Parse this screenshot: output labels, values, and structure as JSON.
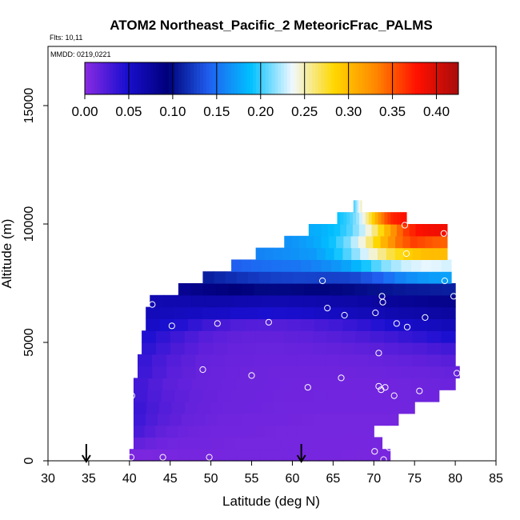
{
  "chart_data": {
    "type": "heatmap",
    "title": "ATOM2 Northeast_Pacific_2 MeteoricFrac_PALMS",
    "annotations": [
      "Flts: 10,11",
      "MMDD: 0219,0221"
    ],
    "xlabel": "Latitude (deg N)",
    "ylabel": "Altitude (m)",
    "xlim": [
      30,
      85
    ],
    "ylim": [
      0,
      17500
    ],
    "x_ticks": [
      30,
      35,
      40,
      45,
      50,
      55,
      60,
      65,
      70,
      75,
      80,
      85
    ],
    "y_ticks": [
      0,
      5000,
      10000,
      15000
    ],
    "colorbar": {
      "ticks": [
        0.0,
        0.05,
        0.1,
        0.15,
        0.2,
        0.25,
        0.3,
        0.35,
        0.4
      ],
      "tick_labels": [
        "0.00",
        "0.05",
        "0.10",
        "0.15",
        "0.20",
        "0.25",
        "0.30",
        "0.35",
        "0.40"
      ],
      "range": [
        0,
        0.425
      ],
      "colors": [
        "#8a2be2",
        "#1a0fd0",
        "#00007a",
        "#2060f0",
        "#00c0ff",
        "#f0f8ff",
        "#ffd800",
        "#ff8800",
        "#ff1000",
        "#a80c0c"
      ]
    },
    "grid_rows": [
      {
        "alt_range": [
          0,
          500
        ],
        "lat_range": [
          40.0,
          72.0
        ],
        "values": [
          0.006,
          0.007,
          0.008,
          0.008,
          0.009,
          0.009,
          0.009,
          0.008,
          0.008,
          0.007,
          0.007
        ]
      },
      {
        "alt_range": [
          500,
          1000
        ],
        "lat_range": [
          40.5,
          71.0
        ],
        "values": [
          0.018,
          0.012,
          0.01,
          0.01,
          0.009,
          0.009,
          0.009,
          0.009,
          0.008,
          0.008,
          0.008
        ]
      },
      {
        "alt_range": [
          1000,
          1500
        ],
        "lat_range": [
          40.5,
          70.0
        ],
        "values": [
          0.03,
          0.018,
          0.013,
          0.011,
          0.01,
          0.01,
          0.009,
          0.009,
          0.009,
          0.009,
          0.009
        ]
      },
      {
        "alt_range": [
          1500,
          2000
        ],
        "lat_range": [
          40.5,
          73.0
        ],
        "values": [
          0.035,
          0.022,
          0.015,
          0.012,
          0.011,
          0.01,
          0.01,
          0.009,
          0.009,
          0.009,
          0.009
        ]
      },
      {
        "alt_range": [
          2000,
          2500
        ],
        "lat_range": [
          40.5,
          75.0
        ],
        "values": [
          0.036,
          0.024,
          0.016,
          0.013,
          0.012,
          0.011,
          0.01,
          0.01,
          0.01,
          0.01,
          0.01
        ]
      },
      {
        "alt_range": [
          2500,
          3000
        ],
        "lat_range": [
          40.5,
          78.0
        ],
        "values": [
          0.034,
          0.022,
          0.016,
          0.013,
          0.012,
          0.011,
          0.011,
          0.01,
          0.01,
          0.011,
          0.012
        ]
      },
      {
        "alt_range": [
          3000,
          3500
        ],
        "lat_range": [
          40.5,
          80.0
        ],
        "values": [
          0.033,
          0.02,
          0.015,
          0.013,
          0.012,
          0.011,
          0.011,
          0.011,
          0.011,
          0.012,
          0.013
        ]
      },
      {
        "alt_range": [
          3500,
          4000
        ],
        "lat_range": [
          41.0,
          80.5
        ],
        "values": [
          0.036,
          0.021,
          0.015,
          0.013,
          0.012,
          0.012,
          0.012,
          0.012,
          0.013,
          0.014,
          0.016
        ]
      },
      {
        "alt_range": [
          4000,
          4500
        ],
        "lat_range": [
          41.0,
          80.0
        ],
        "values": [
          0.038,
          0.024,
          0.016,
          0.014,
          0.013,
          0.013,
          0.013,
          0.014,
          0.016,
          0.018,
          0.022
        ]
      },
      {
        "alt_range": [
          4500,
          5000
        ],
        "lat_range": [
          41.5,
          80.0
        ],
        "values": [
          0.042,
          0.028,
          0.018,
          0.015,
          0.014,
          0.015,
          0.016,
          0.018,
          0.022,
          0.026,
          0.032
        ]
      },
      {
        "alt_range": [
          5000,
          5500
        ],
        "lat_range": [
          41.5,
          80.0
        ],
        "values": [
          0.048,
          0.034,
          0.022,
          0.017,
          0.016,
          0.018,
          0.021,
          0.026,
          0.032,
          0.04,
          0.048
        ]
      },
      {
        "alt_range": [
          5500,
          6000
        ],
        "lat_range": [
          42.0,
          80.0
        ],
        "values": [
          0.055,
          0.045,
          0.032,
          0.024,
          0.022,
          0.024,
          0.03,
          0.038,
          0.048,
          0.056,
          0.062
        ]
      },
      {
        "alt_range": [
          6000,
          6500
        ],
        "lat_range": [
          42.0,
          80.0
        ],
        "values": [
          0.06,
          0.058,
          0.054,
          0.05,
          0.048,
          0.05,
          0.055,
          0.06,
          0.065,
          0.07,
          0.074
        ]
      },
      {
        "alt_range": [
          6500,
          7000
        ],
        "lat_range": [
          42.5,
          80.0
        ],
        "values": [
          0.064,
          0.066,
          0.068,
          0.066,
          0.064,
          0.065,
          0.068,
          0.072,
          0.078,
          0.082,
          0.085
        ]
      },
      {
        "alt_range": [
          7000,
          7500
        ],
        "lat_range": [
          46.0,
          80.0
        ],
        "values": [
          0.08,
          0.088,
          0.094,
          0.098,
          0.098,
          0.096,
          0.098,
          0.102,
          0.106,
          0.108,
          0.11
        ]
      },
      {
        "alt_range": [
          7500,
          8000
        ],
        "lat_range": [
          49.0,
          79.5
        ],
        "values": [
          0.108,
          0.116,
          0.122,
          0.126,
          0.128,
          0.126,
          0.128,
          0.14,
          0.16,
          0.17,
          0.175
        ]
      },
      {
        "alt_range": [
          8000,
          8500
        ],
        "lat_range": [
          52.5,
          79.5
        ],
        "values": [
          0.14,
          0.146,
          0.15,
          0.152,
          0.16,
          0.17,
          0.19,
          0.215,
          0.23,
          0.235,
          0.23
        ]
      },
      {
        "alt_range": [
          8500,
          9000
        ],
        "lat_range": [
          55.5,
          79.0
        ],
        "values": [
          0.158,
          0.162,
          0.166,
          0.17,
          0.185,
          0.21,
          0.24,
          0.27,
          0.29,
          0.3,
          0.3
        ]
      },
      {
        "alt_range": [
          9000,
          9500
        ],
        "lat_range": [
          59.0,
          79.0
        ],
        "values": [
          0.165,
          0.17,
          0.178,
          0.192,
          0.215,
          0.25,
          0.3,
          0.34,
          0.36,
          0.35,
          0.345
        ]
      },
      {
        "alt_range": [
          9500,
          10000
        ],
        "lat_range": [
          62.0,
          79.0
        ],
        "values": [
          0.178,
          0.182,
          0.19,
          0.205,
          0.23,
          0.27,
          0.32,
          0.36,
          0.38,
          0.385,
          0.385
        ]
      },
      {
        "alt_range": [
          10000,
          10500
        ],
        "lat_range": [
          65.5,
          74.0
        ],
        "values": [
          0.19,
          0.196,
          0.205,
          0.22,
          0.245,
          0.28,
          0.32,
          0.35,
          0.37,
          0.375,
          0.38
        ]
      },
      {
        "alt_range": [
          10500,
          11000
        ],
        "lat_range": [
          67.5,
          68.5
        ],
        "values": [
          0.2,
          0.205,
          0.21,
          0.215,
          0.22,
          0.225,
          0.23,
          0.235,
          0.24,
          0.245,
          0.25
        ]
      }
    ],
    "sample_points": [
      {
        "x": 40.2,
        "y": 150
      },
      {
        "x": 44.1,
        "y": 150
      },
      {
        "x": 49.8,
        "y": 150
      },
      {
        "x": 40.3,
        "y": 2750
      },
      {
        "x": 49.0,
        "y": 3850
      },
      {
        "x": 55.0,
        "y": 3600
      },
      {
        "x": 61.9,
        "y": 3100
      },
      {
        "x": 66.0,
        "y": 3500
      },
      {
        "x": 70.6,
        "y": 3150
      },
      {
        "x": 71.4,
        "y": 3100
      },
      {
        "x": 70.9,
        "y": 3000
      },
      {
        "x": 72.5,
        "y": 2750
      },
      {
        "x": 75.6,
        "y": 2950
      },
      {
        "x": 80.2,
        "y": 3700
      },
      {
        "x": 70.1,
        "y": 400
      },
      {
        "x": 71.9,
        "y": 550
      },
      {
        "x": 71.2,
        "y": 50
      },
      {
        "x": 70.6,
        "y": 4550
      },
      {
        "x": 45.2,
        "y": 5700
      },
      {
        "x": 50.8,
        "y": 5800
      },
      {
        "x": 57.1,
        "y": 5850
      },
      {
        "x": 66.4,
        "y": 6150
      },
      {
        "x": 70.2,
        "y": 6250
      },
      {
        "x": 72.8,
        "y": 5800
      },
      {
        "x": 74.1,
        "y": 5650
      },
      {
        "x": 76.3,
        "y": 6050
      },
      {
        "x": 42.8,
        "y": 6600
      },
      {
        "x": 64.3,
        "y": 6450
      },
      {
        "x": 71.1,
        "y": 6700
      },
      {
        "x": 71.0,
        "y": 6950
      },
      {
        "x": 79.8,
        "y": 6950
      },
      {
        "x": 63.7,
        "y": 7600
      },
      {
        "x": 78.7,
        "y": 7600
      },
      {
        "x": 74.0,
        "y": 8750
      },
      {
        "x": 78.6,
        "y": 9600
      },
      {
        "x": 73.8,
        "y": 9950
      }
    ],
    "arrows_latitude": [
      34.7,
      61.1
    ],
    "grid": false
  }
}
